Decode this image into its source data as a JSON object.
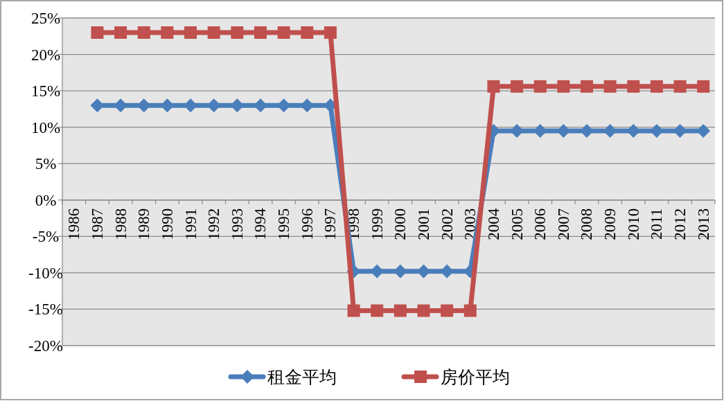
{
  "chart_data": {
    "type": "line",
    "categories": [
      "1986",
      "1987",
      "1988",
      "1989",
      "1990",
      "1991",
      "1992",
      "1993",
      "1994",
      "1995",
      "1996",
      "1997",
      "1998",
      "1999",
      "2000",
      "2001",
      "2002",
      "2003",
      "2004",
      "2005",
      "2006",
      "2007",
      "2008",
      "2009",
      "2010",
      "2011",
      "2012",
      "2013"
    ],
    "series": [
      {
        "name": "租金平均",
        "color": "#4a7ebb",
        "marker": "diamond",
        "values": [
          null,
          13,
          13,
          13,
          13,
          13,
          13,
          13,
          13,
          13,
          13,
          13,
          -9.8,
          -9.8,
          -9.8,
          -9.8,
          -9.8,
          -9.8,
          9.5,
          9.5,
          9.5,
          9.5,
          9.5,
          9.5,
          9.5,
          9.5,
          9.5,
          9.5
        ]
      },
      {
        "name": "房价平均",
        "color": "#c0504d",
        "marker": "square",
        "values": [
          null,
          23,
          23,
          23,
          23,
          23,
          23,
          23,
          23,
          23,
          23,
          23,
          -15.2,
          -15.2,
          -15.2,
          -15.2,
          -15.2,
          -15.2,
          15.6,
          15.6,
          15.6,
          15.6,
          15.6,
          15.6,
          15.6,
          15.6,
          15.6,
          15.6
        ]
      }
    ],
    "ylim": [
      -20,
      25
    ],
    "yticks": [
      {
        "value": -20,
        "label": "-20%"
      },
      {
        "value": -15,
        "label": "-15%"
      },
      {
        "value": -10,
        "label": "-10%"
      },
      {
        "value": -5,
        "label": "-5%"
      },
      {
        "value": 0,
        "label": "0%"
      },
      {
        "value": 5,
        "label": "5%"
      },
      {
        "value": 10,
        "label": "10%"
      },
      {
        "value": 15,
        "label": "15%"
      },
      {
        "value": 20,
        "label": "20%"
      },
      {
        "value": 25,
        "label": "25%"
      }
    ],
    "grid": "y",
    "legend": "bottom",
    "line_style": "solid"
  }
}
